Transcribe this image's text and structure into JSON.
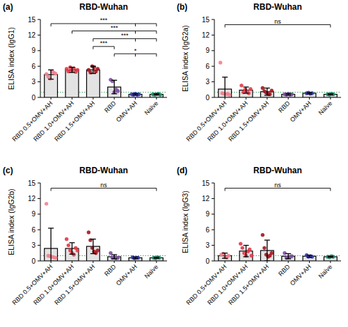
{
  "chart_data": [
    {
      "type": "bar",
      "panel": "(a)",
      "title": "RBD-Wuhan",
      "y_label": "ELISA index (IgG1)",
      "categories": [
        "RBD 0.5+OMV+AH",
        "RBD 1.0+OMV+AH",
        "RBD 1.5+OMV+AH",
        "RBD",
        "OMV+AH",
        "Naïve"
      ],
      "values": [
        4.4,
        5.3,
        5.3,
        2.0,
        0.6,
        0.6
      ],
      "errors": [
        0.9,
        0.5,
        0.7,
        1.3,
        0.15,
        0.1
      ],
      "points": [
        [
          4.5,
          4.0,
          3.6,
          5.0,
          4.8,
          4.6
        ],
        [
          5.5,
          5.0,
          5.8,
          5.2,
          5.6,
          4.9,
          5.3
        ],
        [
          5.3,
          4.8,
          6.0,
          5.8,
          5.0,
          5.5
        ],
        [
          3.4,
          3.1,
          1.0,
          1.5,
          1.2
        ],
        [
          0.6,
          0.5,
          0.7,
          0.5,
          0.6
        ],
        [
          0.6,
          0.5,
          0.6,
          0.7,
          0.5
        ]
      ],
      "colors": [
        "#f0828e",
        "#e03a48",
        "#a3161f",
        "#7b4fa3",
        "#3c3cb4",
        "#1f8a6a"
      ],
      "ylim": [
        0,
        15
      ],
      "yticks": [
        0,
        3,
        6,
        9,
        12,
        15
      ],
      "threshold": 1,
      "brackets": [
        {
          "from": 0,
          "to": [
            4,
            5
          ],
          "y": 14.2,
          "label": "***"
        },
        {
          "from": 1,
          "to": [
            4,
            5
          ],
          "y": 12.8,
          "label": "***"
        },
        {
          "from": 2,
          "to": [
            4,
            5
          ],
          "y": 11.3,
          "label": "***"
        },
        {
          "from": 2,
          "to": [
            3
          ],
          "y": 9.8,
          "label": "***"
        },
        {
          "from": 3,
          "to": [
            4,
            5
          ],
          "y": 8.4,
          "label": "*"
        }
      ]
    },
    {
      "type": "bar",
      "panel": "(b)",
      "title": "RBD-Wuhan",
      "y_label": "ELISA index (IgG2a)",
      "categories": [
        "RBD 0.5+OMV+AH",
        "RBD 1.0+OMV+AH",
        "RBD 1.5+OMV+AH",
        "RBD",
        "OMV+AH",
        "Naïve"
      ],
      "values": [
        1.6,
        1.4,
        1.1,
        0.6,
        0.8,
        0.6
      ],
      "errors": [
        2.3,
        0.6,
        0.7,
        0.15,
        0.15,
        0.1
      ],
      "points": [
        [
          6.7,
          0.8,
          0.7,
          0.6,
          0.7,
          0.5
        ],
        [
          2.3,
          1.0,
          1.5,
          1.2,
          0.8,
          1.6
        ],
        [
          1.8,
          1.2,
          0.9,
          0.7,
          0.6,
          1.3
        ],
        [
          0.6,
          0.5,
          0.7,
          0.5,
          0.6
        ],
        [
          0.8,
          0.9,
          0.7,
          0.8
        ],
        [
          0.6,
          0.5,
          0.7,
          0.6
        ]
      ],
      "colors": [
        "#f0828e",
        "#e03a48",
        "#a3161f",
        "#7b4fa3",
        "#3c3cb4",
        "#1f8a6a"
      ],
      "ylim": [
        0,
        15
      ],
      "yticks": [
        0,
        3,
        6,
        9,
        12,
        15
      ],
      "threshold": 1,
      "brackets": [
        {
          "from": 0,
          "to": [
            5
          ],
          "y": 14,
          "label": "ns"
        }
      ]
    },
    {
      "type": "bar",
      "panel": "(c)",
      "title": "RBD-Wuhan",
      "y_label": "ELISA index (IgG2b)",
      "categories": [
        "RBD 0.5+OMV+AH",
        "RBD 1.0+OMV+AH",
        "RBD 1.5+OMV+AH",
        "RBD",
        "OMV+AH",
        "Naïve"
      ],
      "values": [
        2.4,
        2.4,
        2.8,
        0.8,
        0.6,
        0.6
      ],
      "errors": [
        3.9,
        1.1,
        1.4,
        0.4,
        0.15,
        0.1
      ],
      "points": [
        [
          11.0,
          1.0,
          0.9,
          0.8,
          0.7,
          0.6
        ],
        [
          4.2,
          3.0,
          2.0,
          1.5,
          1.2,
          2.5,
          2.0
        ],
        [
          5.5,
          4.0,
          2.5,
          1.8,
          1.5,
          2.0
        ],
        [
          1.5,
          0.6,
          0.7,
          0.5,
          0.6
        ],
        [
          0.7,
          0.5,
          0.6,
          0.6
        ],
        [
          0.6,
          0.5,
          0.7,
          0.6
        ]
      ],
      "colors": [
        "#f0828e",
        "#e03a48",
        "#a3161f",
        "#7b4fa3",
        "#3c3cb4",
        "#1f8a6a"
      ],
      "ylim": [
        0,
        15
      ],
      "yticks": [
        0,
        3,
        6,
        9,
        12,
        15
      ],
      "threshold": 1,
      "brackets": [
        {
          "from": 0,
          "to": [
            5
          ],
          "y": 14,
          "label": "ns"
        }
      ]
    },
    {
      "type": "bar",
      "panel": "(d)",
      "title": "RBD-Wuhan",
      "y_label": "ELISA index (IgG3)",
      "categories": [
        "RBD 0.5+OMV+AH",
        "RBD 1.0+OMV+AH",
        "RBD 1.5+OMV+AH",
        "RBD",
        "OMV+AH",
        "Naïve"
      ],
      "values": [
        1.0,
        1.9,
        2.0,
        0.9,
        0.9,
        0.8
      ],
      "errors": [
        0.5,
        1.1,
        2.0,
        0.5,
        0.2,
        0.1
      ],
      "points": [
        [
          1.2,
          1.4,
          0.7,
          0.6,
          1.0
        ],
        [
          3.3,
          2.5,
          1.5,
          1.0,
          1.8,
          2.2,
          1.0
        ],
        [
          5.0,
          2.5,
          1.2,
          0.8,
          1.0,
          1.5
        ],
        [
          1.5,
          0.6,
          0.7,
          0.8,
          0.9
        ],
        [
          1.1,
          0.8,
          0.9,
          0.8
        ],
        [
          0.8,
          0.7,
          0.9,
          0.8
        ]
      ],
      "colors": [
        "#f0828e",
        "#e03a48",
        "#a3161f",
        "#7b4fa3",
        "#3c3cb4",
        "#1f8a6a"
      ],
      "ylim": [
        0,
        15
      ],
      "yticks": [
        0,
        3,
        6,
        9,
        12,
        15
      ],
      "threshold": 1,
      "brackets": [
        {
          "from": 0,
          "to": [
            5
          ],
          "y": 14,
          "label": "ns"
        }
      ]
    }
  ]
}
